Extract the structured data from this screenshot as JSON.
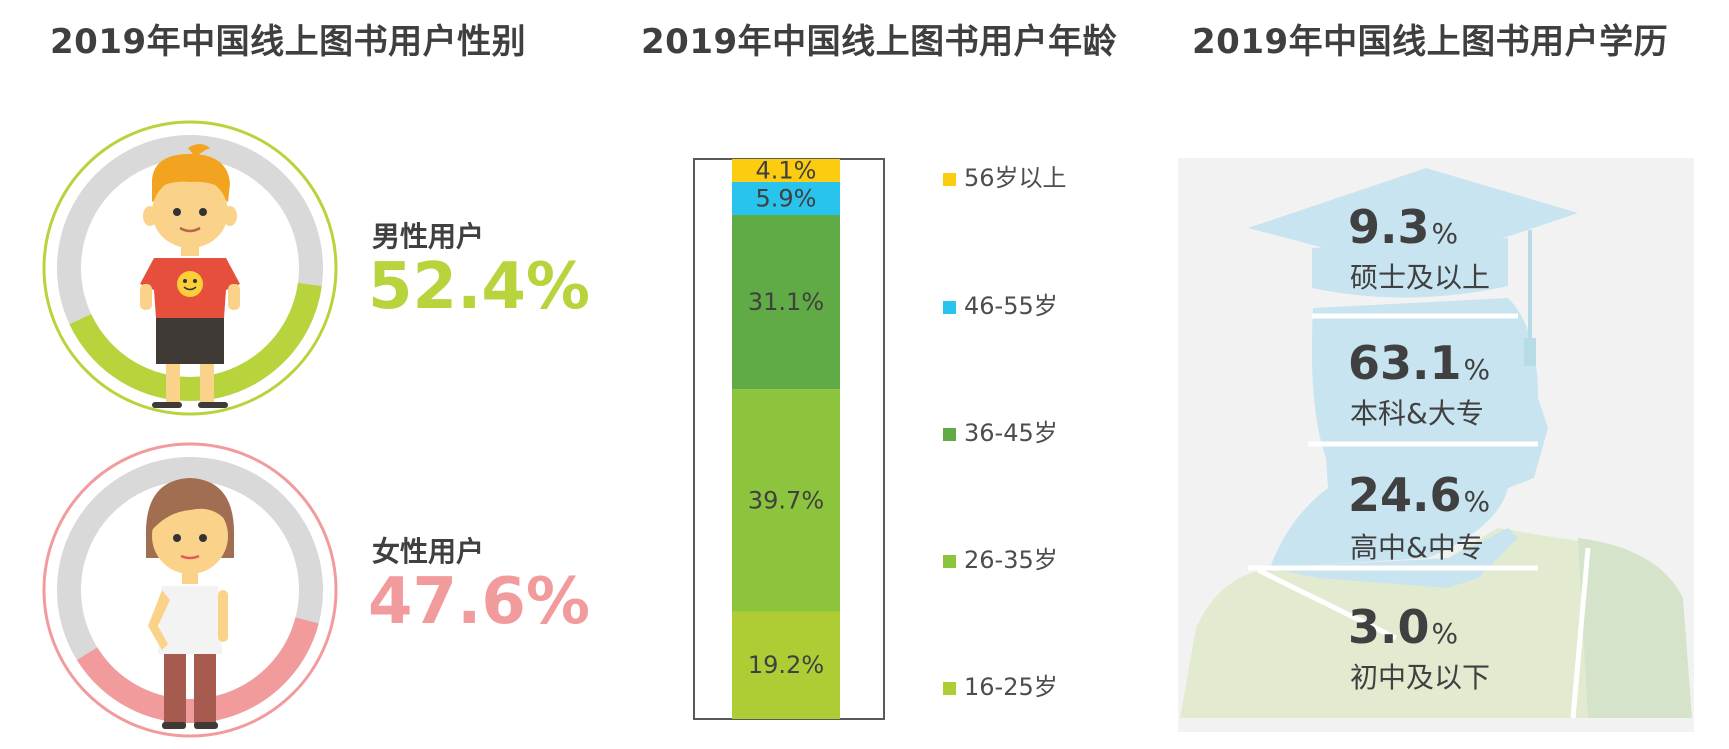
{
  "titles": {
    "gender": "2019年中国线上图书用户性别",
    "age": "2019年中国线上图书用户年龄",
    "education": "2019年中国线上图书用户学历"
  },
  "chart_data": [
    {
      "type": "pie",
      "title": "2019年中国线上图书用户性别",
      "categories": [
        "男性用户",
        "女性用户"
      ],
      "values": [
        52.4,
        47.6
      ],
      "labels": [
        "52.4%",
        "47.6%"
      ],
      "colors": {
        "male": "#b8d43c",
        "female": "#f29b9d",
        "remainder": "#d9d9d9"
      }
    },
    {
      "type": "bar",
      "stacked": true,
      "title": "2019年中国线上图书用户年龄",
      "categories": [
        "16-25岁",
        "26-35岁",
        "36-45岁",
        "46-55岁",
        "56岁以上"
      ],
      "values": [
        19.2,
        39.7,
        31.1,
        5.9,
        4.1
      ],
      "labels": [
        "19.2%",
        "39.7%",
        "31.1%",
        "5.9%",
        "4.1%"
      ],
      "colors": [
        "#aecd35",
        "#8dc43e",
        "#61ab46",
        "#29c4ee",
        "#fccc10"
      ],
      "legend_position": "right"
    },
    {
      "type": "bar",
      "stacked": true,
      "title": "2019年中国线上图书用户学历",
      "categories": [
        "硕士及以上",
        "本科&大专",
        "高中&中专",
        "初中及以下"
      ],
      "values": [
        9.3,
        63.1,
        24.6,
        3.0
      ],
      "value_labels": [
        "9.3",
        "63.1",
        "24.6",
        "3.0"
      ],
      "unit": "%"
    }
  ]
}
